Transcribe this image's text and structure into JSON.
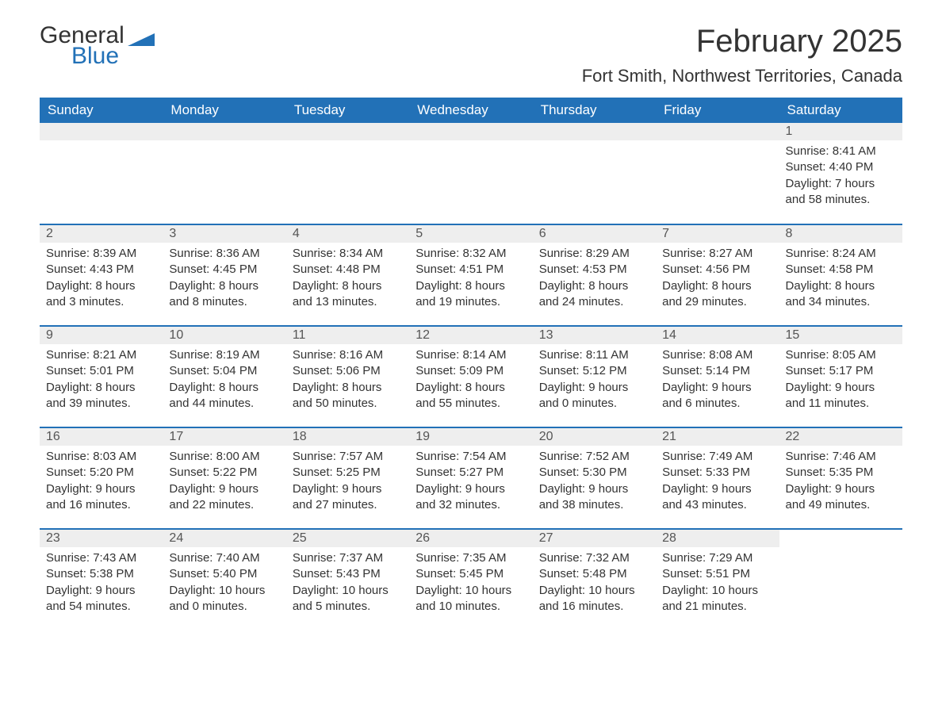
{
  "logo": {
    "text1": "General",
    "text2": "Blue",
    "color_general": "#333333",
    "color_blue": "#2271b7"
  },
  "title": "February 2025",
  "location": "Fort Smith, Northwest Territories, Canada",
  "weekdays": [
    "Sunday",
    "Monday",
    "Tuesday",
    "Wednesday",
    "Thursday",
    "Friday",
    "Saturday"
  ],
  "colors": {
    "header_bg": "#2271b7",
    "header_text": "#ffffff",
    "day_num_bg": "#eeeeee",
    "row_divider": "#2271b7",
    "body_text": "#333333",
    "background": "#ffffff"
  },
  "typography": {
    "title_fontsize": 40,
    "location_fontsize": 22,
    "weekday_fontsize": 17,
    "daynum_fontsize": 16,
    "body_fontsize": 15
  },
  "layout": {
    "columns": 7,
    "rows": 5,
    "first_day_column": 6
  },
  "labels": {
    "sunrise": "Sunrise:",
    "sunset": "Sunset:",
    "daylight": "Daylight:"
  },
  "days": [
    {
      "n": 1,
      "sunrise": "8:41 AM",
      "sunset": "4:40 PM",
      "daylight": "7 hours and 58 minutes."
    },
    {
      "n": 2,
      "sunrise": "8:39 AM",
      "sunset": "4:43 PM",
      "daylight": "8 hours and 3 minutes."
    },
    {
      "n": 3,
      "sunrise": "8:36 AM",
      "sunset": "4:45 PM",
      "daylight": "8 hours and 8 minutes."
    },
    {
      "n": 4,
      "sunrise": "8:34 AM",
      "sunset": "4:48 PM",
      "daylight": "8 hours and 13 minutes."
    },
    {
      "n": 5,
      "sunrise": "8:32 AM",
      "sunset": "4:51 PM",
      "daylight": "8 hours and 19 minutes."
    },
    {
      "n": 6,
      "sunrise": "8:29 AM",
      "sunset": "4:53 PM",
      "daylight": "8 hours and 24 minutes."
    },
    {
      "n": 7,
      "sunrise": "8:27 AM",
      "sunset": "4:56 PM",
      "daylight": "8 hours and 29 minutes."
    },
    {
      "n": 8,
      "sunrise": "8:24 AM",
      "sunset": "4:58 PM",
      "daylight": "8 hours and 34 minutes."
    },
    {
      "n": 9,
      "sunrise": "8:21 AM",
      "sunset": "5:01 PM",
      "daylight": "8 hours and 39 minutes."
    },
    {
      "n": 10,
      "sunrise": "8:19 AM",
      "sunset": "5:04 PM",
      "daylight": "8 hours and 44 minutes."
    },
    {
      "n": 11,
      "sunrise": "8:16 AM",
      "sunset": "5:06 PM",
      "daylight": "8 hours and 50 minutes."
    },
    {
      "n": 12,
      "sunrise": "8:14 AM",
      "sunset": "5:09 PM",
      "daylight": "8 hours and 55 minutes."
    },
    {
      "n": 13,
      "sunrise": "8:11 AM",
      "sunset": "5:12 PM",
      "daylight": "9 hours and 0 minutes."
    },
    {
      "n": 14,
      "sunrise": "8:08 AM",
      "sunset": "5:14 PM",
      "daylight": "9 hours and 6 minutes."
    },
    {
      "n": 15,
      "sunrise": "8:05 AM",
      "sunset": "5:17 PM",
      "daylight": "9 hours and 11 minutes."
    },
    {
      "n": 16,
      "sunrise": "8:03 AM",
      "sunset": "5:20 PM",
      "daylight": "9 hours and 16 minutes."
    },
    {
      "n": 17,
      "sunrise": "8:00 AM",
      "sunset": "5:22 PM",
      "daylight": "9 hours and 22 minutes."
    },
    {
      "n": 18,
      "sunrise": "7:57 AM",
      "sunset": "5:25 PM",
      "daylight": "9 hours and 27 minutes."
    },
    {
      "n": 19,
      "sunrise": "7:54 AM",
      "sunset": "5:27 PM",
      "daylight": "9 hours and 32 minutes."
    },
    {
      "n": 20,
      "sunrise": "7:52 AM",
      "sunset": "5:30 PM",
      "daylight": "9 hours and 38 minutes."
    },
    {
      "n": 21,
      "sunrise": "7:49 AM",
      "sunset": "5:33 PM",
      "daylight": "9 hours and 43 minutes."
    },
    {
      "n": 22,
      "sunrise": "7:46 AM",
      "sunset": "5:35 PM",
      "daylight": "9 hours and 49 minutes."
    },
    {
      "n": 23,
      "sunrise": "7:43 AM",
      "sunset": "5:38 PM",
      "daylight": "9 hours and 54 minutes."
    },
    {
      "n": 24,
      "sunrise": "7:40 AM",
      "sunset": "5:40 PM",
      "daylight": "10 hours and 0 minutes."
    },
    {
      "n": 25,
      "sunrise": "7:37 AM",
      "sunset": "5:43 PM",
      "daylight": "10 hours and 5 minutes."
    },
    {
      "n": 26,
      "sunrise": "7:35 AM",
      "sunset": "5:45 PM",
      "daylight": "10 hours and 10 minutes."
    },
    {
      "n": 27,
      "sunrise": "7:32 AM",
      "sunset": "5:48 PM",
      "daylight": "10 hours and 16 minutes."
    },
    {
      "n": 28,
      "sunrise": "7:29 AM",
      "sunset": "5:51 PM",
      "daylight": "10 hours and 21 minutes."
    }
  ]
}
